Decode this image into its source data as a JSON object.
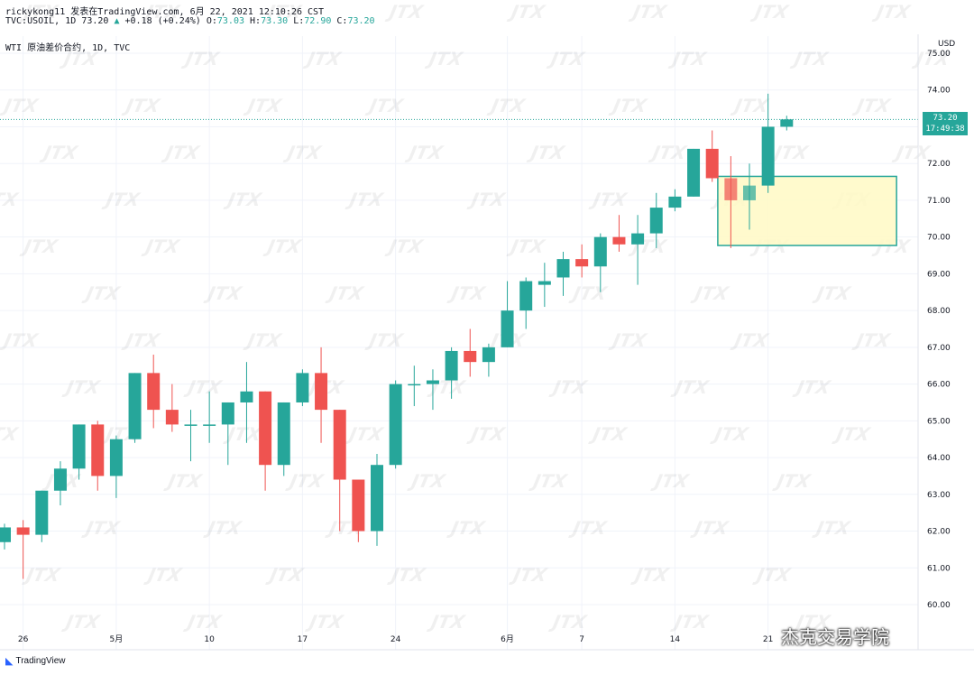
{
  "header": {
    "line1": "rickykong11 发表在TradingView.com, 6月 22, 2021 12:10:26 CST",
    "symbol": "TVC:USOIL, 1D",
    "last": "73.20",
    "change": "+0.18 (+0.24%)",
    "open_label": "O:",
    "open": "73.03",
    "high_label": "H:",
    "high": "73.30",
    "low_label": "L:",
    "low": "72.90",
    "close_label": "C:",
    "close": "73.20",
    "line3": "WTI 原油差价合约, 1D, TVC"
  },
  "price_tag": {
    "price": "73.20",
    "countdown": "17:49:38"
  },
  "footer": {
    "logo": "TradingView",
    "credit": "杰克交易学院"
  },
  "watermark_text": "JTX",
  "colors": {
    "up": "#26a69a",
    "down": "#ef5350",
    "highlight_box": "#fff9c4",
    "highlight_border": "#26a69a"
  },
  "chart_data": {
    "type": "candlestick",
    "currency": "USD",
    "ylim": [
      59.7,
      75.3
    ],
    "y_ticks": [
      "75.00",
      "74.00",
      "73.00",
      "72.00",
      "71.00",
      "70.00",
      "69.00",
      "68.00",
      "67.00",
      "66.00",
      "65.00",
      "64.00",
      "63.00",
      "62.00",
      "61.00",
      "60.00"
    ],
    "x_ticks": [
      {
        "label": "26",
        "index": 1
      },
      {
        "label": "5月",
        "index": 6
      },
      {
        "label": "10",
        "index": 11
      },
      {
        "label": "17",
        "index": 16
      },
      {
        "label": "24",
        "index": 21
      },
      {
        "label": "6月",
        "index": 27
      },
      {
        "label": "7",
        "index": 31
      },
      {
        "label": "14",
        "index": 36
      },
      {
        "label": "21",
        "index": 41
      }
    ],
    "candles": [
      {
        "o": 61.7,
        "h": 62.2,
        "l": 61.5,
        "c": 62.1
      },
      {
        "o": 62.1,
        "h": 62.3,
        "l": 60.7,
        "c": 61.9
      },
      {
        "o": 61.9,
        "h": 63.1,
        "l": 61.7,
        "c": 63.1
      },
      {
        "o": 63.1,
        "h": 63.9,
        "l": 62.7,
        "c": 63.7
      },
      {
        "o": 63.7,
        "h": 64.9,
        "l": 63.4,
        "c": 64.9
      },
      {
        "o": 64.9,
        "h": 65.0,
        "l": 63.1,
        "c": 63.5
      },
      {
        "o": 63.5,
        "h": 64.6,
        "l": 62.9,
        "c": 64.5
      },
      {
        "o": 64.5,
        "h": 66.3,
        "l": 64.4,
        "c": 66.3
      },
      {
        "o": 66.3,
        "h": 66.8,
        "l": 64.8,
        "c": 65.3
      },
      {
        "o": 65.3,
        "h": 66.0,
        "l": 64.7,
        "c": 64.9
      },
      {
        "o": 64.9,
        "h": 65.3,
        "l": 63.9,
        "c": 64.9
      },
      {
        "o": 64.9,
        "h": 65.8,
        "l": 64.4,
        "c": 64.9
      },
      {
        "o": 64.9,
        "h": 65.5,
        "l": 63.8,
        "c": 65.5
      },
      {
        "o": 65.5,
        "h": 66.6,
        "l": 64.4,
        "c": 65.8
      },
      {
        "o": 65.8,
        "h": 65.8,
        "l": 63.1,
        "c": 63.8
      },
      {
        "o": 63.8,
        "h": 65.5,
        "l": 63.5,
        "c": 65.5
      },
      {
        "o": 65.5,
        "h": 66.4,
        "l": 65.4,
        "c": 66.3
      },
      {
        "o": 66.3,
        "h": 67.0,
        "l": 64.4,
        "c": 65.3
      },
      {
        "o": 65.3,
        "h": 65.3,
        "l": 62.0,
        "c": 63.4
      },
      {
        "o": 63.4,
        "h": 63.4,
        "l": 61.7,
        "c": 62.0
      },
      {
        "o": 62.0,
        "h": 64.1,
        "l": 61.6,
        "c": 63.8
      },
      {
        "o": 63.8,
        "h": 66.1,
        "l": 63.7,
        "c": 66.0
      },
      {
        "o": 66.0,
        "h": 66.5,
        "l": 65.4,
        "c": 66.0
      },
      {
        "o": 66.0,
        "h": 66.4,
        "l": 65.3,
        "c": 66.1
      },
      {
        "o": 66.1,
        "h": 67.0,
        "l": 65.6,
        "c": 66.9
      },
      {
        "o": 66.9,
        "h": 67.5,
        "l": 66.2,
        "c": 66.6
      },
      {
        "o": 66.6,
        "h": 67.1,
        "l": 66.2,
        "c": 67.0
      },
      {
        "o": 67.0,
        "h": 68.8,
        "l": 67.0,
        "c": 68.0
      },
      {
        "o": 68.0,
        "h": 68.9,
        "l": 67.5,
        "c": 68.8
      },
      {
        "o": 68.7,
        "h": 69.3,
        "l": 68.1,
        "c": 68.8
      },
      {
        "o": 68.9,
        "h": 69.6,
        "l": 68.4,
        "c": 69.4
      },
      {
        "o": 69.4,
        "h": 69.8,
        "l": 68.9,
        "c": 69.2
      },
      {
        "o": 69.2,
        "h": 70.1,
        "l": 68.5,
        "c": 70.0
      },
      {
        "o": 70.0,
        "h": 70.6,
        "l": 69.6,
        "c": 69.8
      },
      {
        "o": 69.8,
        "h": 70.6,
        "l": 68.7,
        "c": 70.1
      },
      {
        "o": 70.1,
        "h": 71.2,
        "l": 69.7,
        "c": 70.8
      },
      {
        "o": 70.8,
        "h": 71.3,
        "l": 70.7,
        "c": 71.1
      },
      {
        "o": 71.1,
        "h": 72.4,
        "l": 71.1,
        "c": 72.4
      },
      {
        "o": 72.4,
        "h": 72.9,
        "l": 71.5,
        "c": 71.6
      },
      {
        "o": 71.6,
        "h": 72.2,
        "l": 69.7,
        "c": 71.0
      },
      {
        "o": 71.0,
        "h": 72.0,
        "l": 70.2,
        "c": 71.4
      },
      {
        "o": 71.4,
        "h": 73.9,
        "l": 71.2,
        "c": 73.0
      },
      {
        "o": 73.0,
        "h": 73.3,
        "l": 72.9,
        "c": 73.2
      }
    ],
    "highlight_box": {
      "from_index": 38.3,
      "to_index": 47.9,
      "low": 69.77,
      "high": 71.65
    },
    "current_price_line": 73.2
  }
}
